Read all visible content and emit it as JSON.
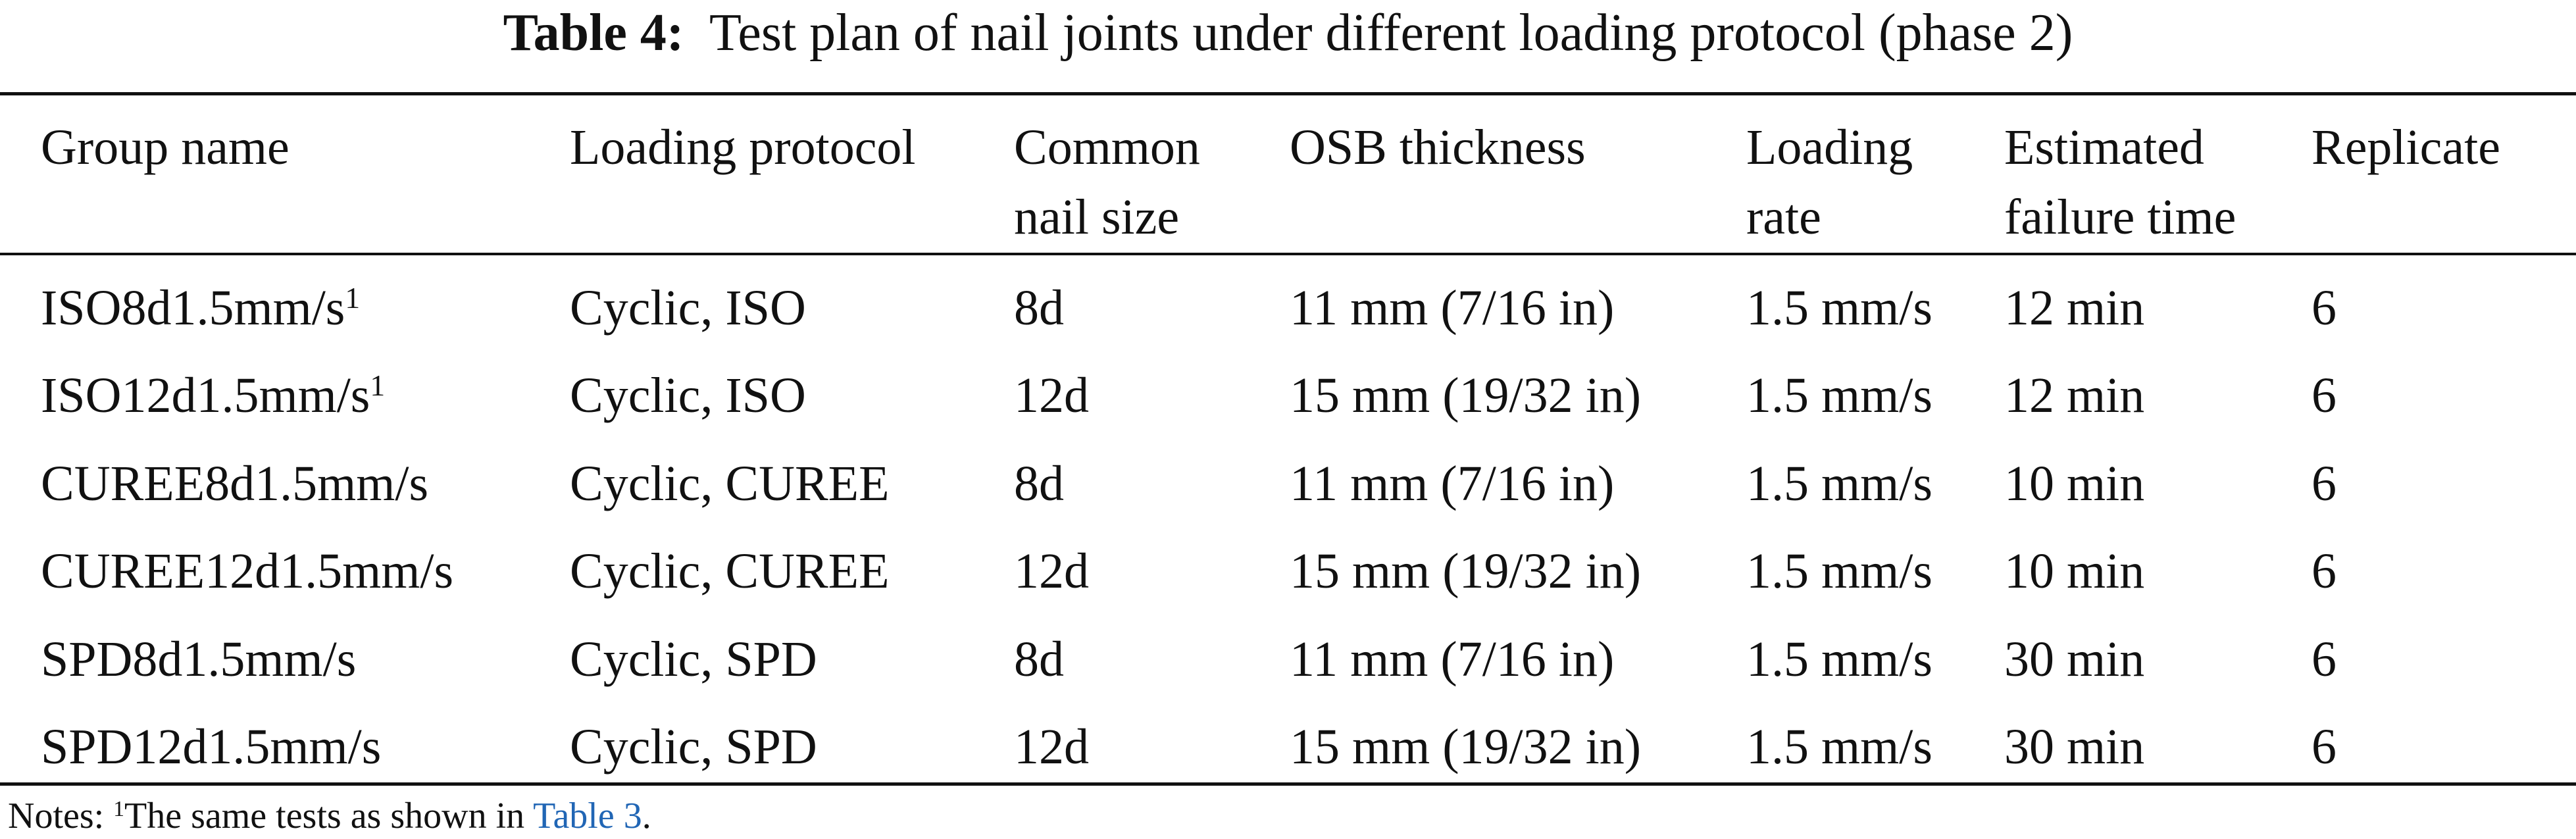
{
  "title": {
    "label": "Table 4:",
    "text": "Test plan of nail joints under different loading protocol (phase 2)"
  },
  "table": {
    "headers": [
      [
        "Group name"
      ],
      [
        "Loading protocol"
      ],
      [
        "Common",
        "nail size"
      ],
      [
        "OSB thickness"
      ],
      [
        "Loading",
        "rate"
      ],
      [
        "Estimated",
        "failure time"
      ],
      [
        "Replicate"
      ]
    ],
    "rows": [
      [
        {
          "text": "ISO8d1.5mm/s",
          "sup": "1"
        },
        "Cyclic, ISO",
        "8d",
        "11 mm (7/16 in)",
        "1.5 mm/s",
        "12 min",
        "6"
      ],
      [
        {
          "text": "ISO12d1.5mm/s",
          "sup": "1"
        },
        "Cyclic, ISO",
        "12d",
        "15 mm (19/32 in)",
        "1.5 mm/s",
        "12 min",
        "6"
      ],
      [
        "CUREE8d1.5mm/s",
        "Cyclic, CUREE",
        "8d",
        "11 mm (7/16 in)",
        "1.5 mm/s",
        "10 min",
        "6"
      ],
      [
        "CUREE12d1.5mm/s",
        "Cyclic, CUREE",
        "12d",
        "15 mm (19/32 in)",
        "1.5 mm/s",
        "10 min",
        "6"
      ],
      [
        "SPD8d1.5mm/s",
        "Cyclic, SPD",
        "8d",
        "11 mm (7/16 in)",
        "1.5 mm/s",
        "30 min",
        "6"
      ],
      [
        "SPD12d1.5mm/s",
        "Cyclic, SPD",
        "12d",
        "15 mm (19/32 in)",
        "1.5 mm/s",
        "30 min",
        "6"
      ]
    ]
  },
  "notes": {
    "label": "Notes:",
    "sup": "1",
    "text": "The same tests as shown in",
    "link": "Table 3",
    "end": "."
  }
}
